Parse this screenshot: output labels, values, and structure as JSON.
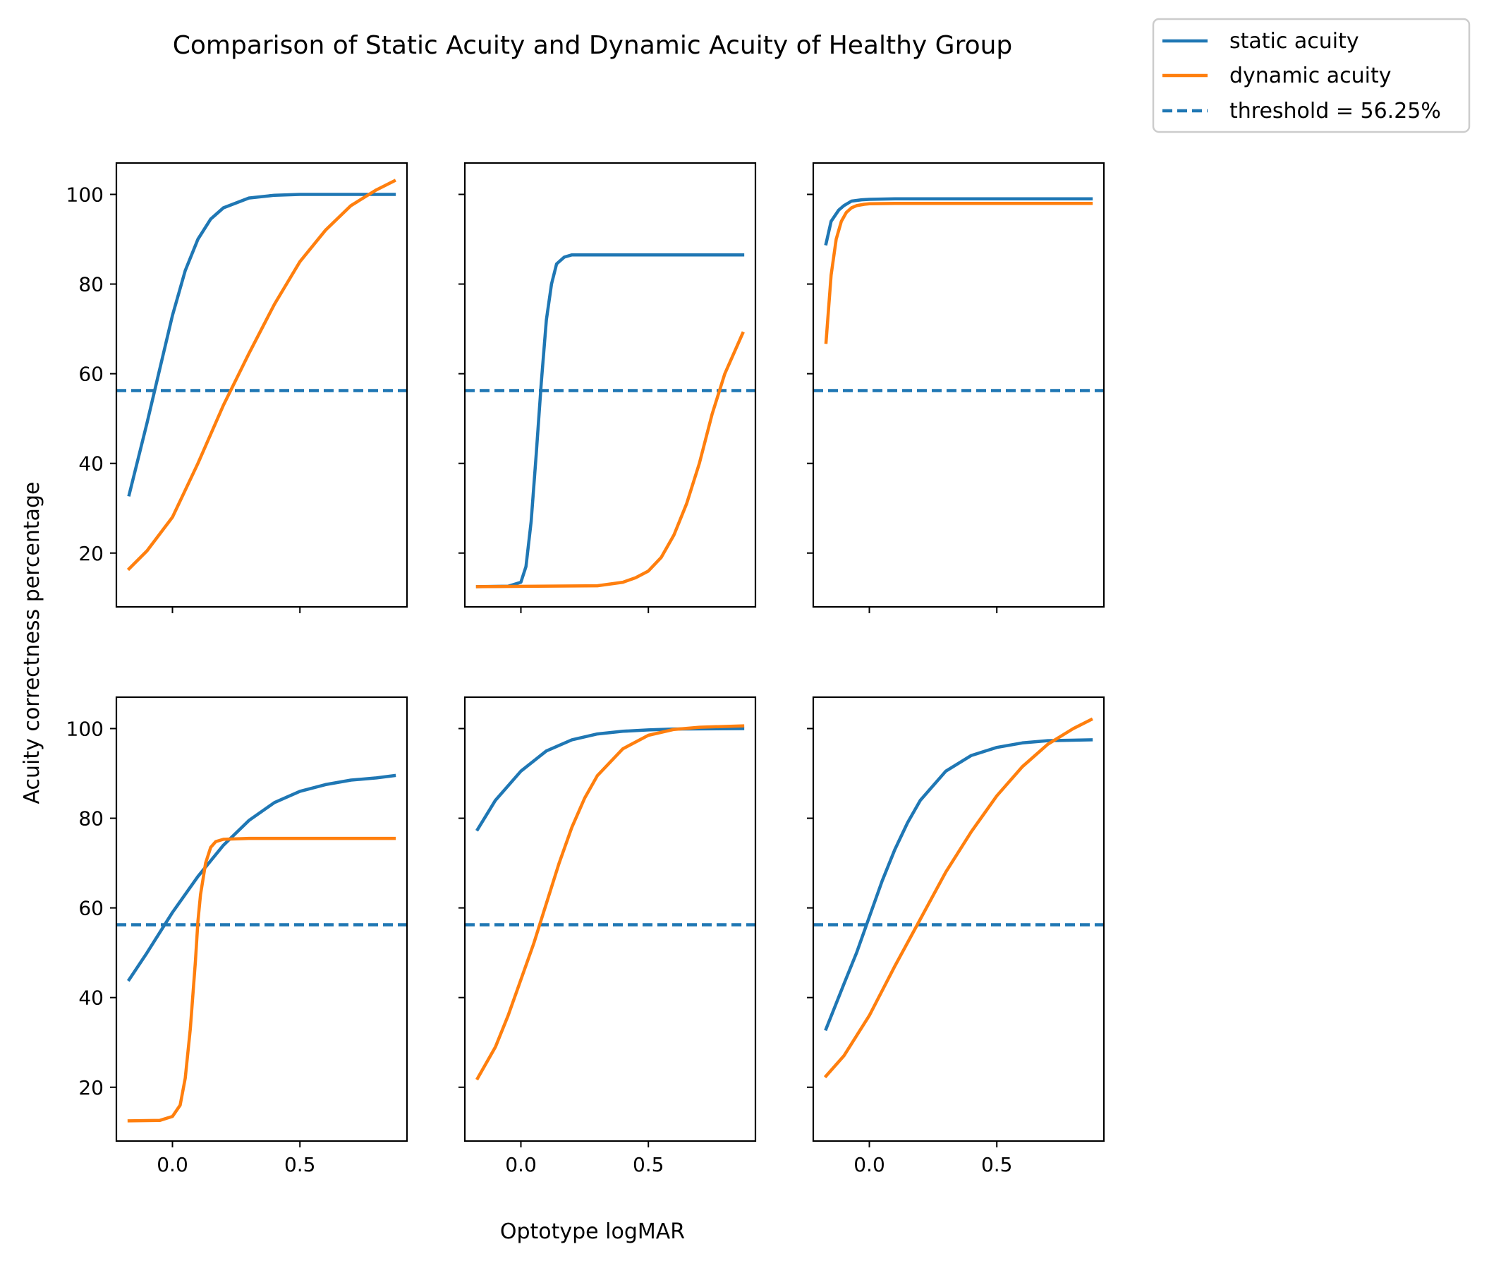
{
  "figure": {
    "title": "Comparison of Static Acuity and Dynamic Acuity of Healthy Group",
    "xlabel": "Optotype logMAR",
    "ylabel": "Acuity correctness percentage"
  },
  "legend": {
    "position": "top-right outside",
    "entries": [
      {
        "label": "static acuity",
        "color": "#1f77b4",
        "style": "solid"
      },
      {
        "label": "dynamic acuity",
        "color": "#ff7f0e",
        "style": "solid"
      },
      {
        "label": "threshold = 56.25%",
        "color": "#1f77b4",
        "style": "dashed"
      }
    ]
  },
  "colors": {
    "static": "#1f77b4",
    "dynamic": "#ff7f0e",
    "threshold": "#1f77b4"
  },
  "chart_data": [
    {
      "type": "line",
      "xlim": [
        -0.22,
        0.92
      ],
      "ylim": [
        8,
        107
      ],
      "xticks": [
        0.0,
        0.5
      ],
      "yticks": [
        20,
        40,
        60,
        80,
        100
      ],
      "threshold": 56.25,
      "series": [
        {
          "name": "static acuity",
          "x": [
            -0.17,
            -0.1,
            -0.05,
            0.0,
            0.05,
            0.1,
            0.15,
            0.2,
            0.3,
            0.4,
            0.5,
            0.6,
            0.7,
            0.8,
            0.87
          ],
          "y": [
            33,
            49,
            61,
            73,
            83,
            90,
            94.5,
            97,
            99.2,
            99.8,
            100,
            100,
            100,
            100,
            100
          ]
        },
        {
          "name": "dynamic acuity",
          "x": [
            -0.17,
            -0.1,
            0.0,
            0.1,
            0.2,
            0.3,
            0.4,
            0.5,
            0.6,
            0.7,
            0.8,
            0.87
          ],
          "y": [
            16.5,
            20.5,
            28,
            40,
            53,
            64.5,
            75.5,
            85,
            92,
            97.5,
            101,
            103
          ]
        }
      ]
    },
    {
      "type": "line",
      "xlim": [
        -0.22,
        0.92
      ],
      "ylim": [
        8,
        107
      ],
      "xticks": [
        0.0,
        0.5
      ],
      "yticks": [
        20,
        40,
        60,
        80,
        100
      ],
      "threshold": 56.25,
      "series": [
        {
          "name": "static acuity",
          "x": [
            -0.17,
            -0.05,
            0.0,
            0.02,
            0.04,
            0.06,
            0.08,
            0.1,
            0.12,
            0.14,
            0.17,
            0.2,
            0.3,
            0.87
          ],
          "y": [
            12.5,
            12.6,
            13.5,
            17,
            27,
            42,
            58,
            72,
            80,
            84.5,
            86,
            86.5,
            86.5,
            86.5
          ]
        },
        {
          "name": "dynamic acuity",
          "x": [
            -0.17,
            0.3,
            0.4,
            0.45,
            0.5,
            0.55,
            0.6,
            0.65,
            0.7,
            0.75,
            0.8,
            0.87
          ],
          "y": [
            12.5,
            12.7,
            13.5,
            14.5,
            16,
            19,
            24,
            31,
            40,
            51,
            60,
            69
          ]
        }
      ]
    },
    {
      "type": "line",
      "xlim": [
        -0.22,
        0.92
      ],
      "ylim": [
        8,
        107
      ],
      "xticks": [
        0.0,
        0.5
      ],
      "yticks": [
        20,
        40,
        60,
        80,
        100
      ],
      "threshold": 56.25,
      "series": [
        {
          "name": "static acuity",
          "x": [
            -0.17,
            -0.15,
            -0.12,
            -0.1,
            -0.07,
            -0.03,
            0.0,
            0.1,
            0.87
          ],
          "y": [
            89,
            94,
            96.5,
            97.5,
            98.5,
            98.8,
            98.9,
            99,
            99
          ]
        },
        {
          "name": "dynamic acuity",
          "x": [
            -0.17,
            -0.15,
            -0.13,
            -0.11,
            -0.09,
            -0.07,
            -0.05,
            -0.02,
            0.0,
            0.1,
            0.87
          ],
          "y": [
            67,
            82,
            90,
            94,
            96,
            97,
            97.5,
            97.8,
            97.9,
            98,
            98
          ]
        }
      ]
    },
    {
      "type": "line",
      "xlim": [
        -0.22,
        0.92
      ],
      "ylim": [
        8,
        107
      ],
      "xticks": [
        0.0,
        0.5
      ],
      "yticks": [
        20,
        40,
        60,
        80,
        100
      ],
      "threshold": 56.25,
      "series": [
        {
          "name": "static acuity",
          "x": [
            -0.17,
            -0.1,
            0.0,
            0.1,
            0.2,
            0.3,
            0.4,
            0.5,
            0.6,
            0.7,
            0.8,
            0.87
          ],
          "y": [
            44,
            50,
            59,
            67,
            74,
            79.5,
            83.5,
            86,
            87.5,
            88.5,
            89,
            89.5
          ]
        },
        {
          "name": "dynamic acuity",
          "x": [
            -0.17,
            -0.05,
            0.0,
            0.03,
            0.05,
            0.07,
            0.09,
            0.1,
            0.11,
            0.13,
            0.15,
            0.17,
            0.2,
            0.3,
            0.87
          ],
          "y": [
            12.5,
            12.6,
            13.5,
            16,
            22,
            33,
            48,
            57,
            63,
            70,
            73.5,
            74.8,
            75.3,
            75.5,
            75.5
          ]
        }
      ]
    },
    {
      "type": "line",
      "xlim": [
        -0.22,
        0.92
      ],
      "ylim": [
        8,
        107
      ],
      "xticks": [
        0.0,
        0.5
      ],
      "yticks": [
        20,
        40,
        60,
        80,
        100
      ],
      "threshold": 56.25,
      "series": [
        {
          "name": "static acuity",
          "x": [
            -0.17,
            -0.1,
            0.0,
            0.1,
            0.2,
            0.3,
            0.4,
            0.5,
            0.6,
            0.87
          ],
          "y": [
            77.5,
            84,
            90.5,
            95,
            97.5,
            98.8,
            99.4,
            99.7,
            99.9,
            100
          ]
        },
        {
          "name": "dynamic acuity",
          "x": [
            -0.17,
            -0.1,
            -0.05,
            0.0,
            0.05,
            0.1,
            0.15,
            0.2,
            0.25,
            0.3,
            0.4,
            0.5,
            0.6,
            0.7,
            0.87
          ],
          "y": [
            22,
            29,
            36,
            44,
            52,
            61,
            70,
            78,
            84.5,
            89.5,
            95.5,
            98.5,
            99.8,
            100.3,
            100.6
          ]
        }
      ]
    },
    {
      "type": "line",
      "xlim": [
        -0.22,
        0.92
      ],
      "ylim": [
        8,
        107
      ],
      "xticks": [
        0.0,
        0.5
      ],
      "yticks": [
        20,
        40,
        60,
        80,
        100
      ],
      "threshold": 56.25,
      "series": [
        {
          "name": "static acuity",
          "x": [
            -0.17,
            -0.1,
            -0.05,
            0.0,
            0.05,
            0.1,
            0.15,
            0.2,
            0.3,
            0.4,
            0.5,
            0.6,
            0.7,
            0.87
          ],
          "y": [
            33,
            43,
            50,
            58,
            66,
            73,
            79,
            84,
            90.5,
            94,
            95.8,
            96.8,
            97.3,
            97.5
          ]
        },
        {
          "name": "dynamic acuity",
          "x": [
            -0.17,
            -0.1,
            0.0,
            0.1,
            0.2,
            0.3,
            0.4,
            0.5,
            0.6,
            0.7,
            0.8,
            0.87
          ],
          "y": [
            22.5,
            27,
            36,
            47,
            57.5,
            68,
            77,
            85,
            91.5,
            96.5,
            100,
            102
          ]
        }
      ]
    }
  ]
}
